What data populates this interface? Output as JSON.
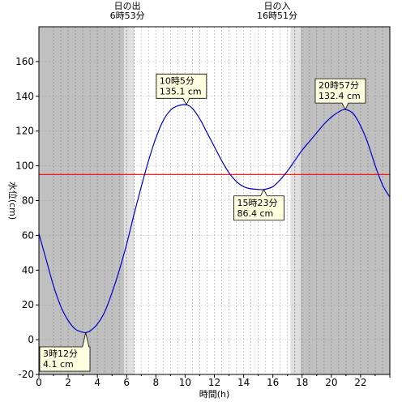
{
  "chart_data": {
    "type": "line",
    "title": "",
    "xlabel": "時間(h)",
    "ylabel": "水位(cm)",
    "xlim": [
      0,
      24
    ],
    "ylim": [
      -20,
      180
    ],
    "x_ticks": [
      0,
      2,
      4,
      6,
      8,
      10,
      12,
      14,
      16,
      18,
      20,
      22
    ],
    "y_ticks": [
      -20,
      0,
      20,
      40,
      60,
      80,
      100,
      120,
      140,
      160
    ],
    "grid": true,
    "sunrise": {
      "label": "日の出",
      "time": "6時53分",
      "hour": 6.883
    },
    "sunset": {
      "label": "日の入",
      "time": "16時51分",
      "hour": 16.85
    },
    "reference_line": {
      "y": 95,
      "color": "#ff0000"
    },
    "series": [
      {
        "color": "#0000cc",
        "x": [
          0,
          0.5,
          1,
          1.5,
          2,
          2.5,
          3,
          3.2,
          3.5,
          4,
          4.5,
          5,
          5.5,
          6,
          6.5,
          7,
          7.5,
          8,
          8.5,
          9,
          9.5,
          10.08,
          10.5,
          11,
          11.5,
          12,
          12.5,
          13,
          13.5,
          14,
          14.5,
          15,
          15.38,
          16,
          16.5,
          17,
          17.5,
          18,
          18.5,
          19,
          19.5,
          20,
          20.5,
          20.95,
          21.5,
          22,
          22.5,
          23,
          23.5,
          24
        ],
        "y": [
          61,
          46,
          31,
          19,
          11,
          6,
          4.3,
          4.1,
          5,
          9,
          16,
          27,
          40,
          55,
          72,
          88,
          103,
          116,
          126,
          132,
          134.5,
          135.1,
          133,
          127,
          119,
          111,
          103,
          96,
          91,
          88,
          86.8,
          86.5,
          86.4,
          88,
          92,
          97,
          103,
          109,
          114,
          119,
          124,
          128,
          131,
          132.4,
          130,
          123,
          113,
          100,
          89,
          82
        ]
      }
    ],
    "annotations": [
      {
        "time": "10時5分",
        "value": "135.1 cm",
        "x": 10.08,
        "y": 135.1,
        "kind": "high"
      },
      {
        "time": "15時23分",
        "value": "86.4 cm",
        "x": 15.38,
        "y": 86.4,
        "kind": "low"
      },
      {
        "time": "20時57分",
        "value": "132.4 cm",
        "x": 20.95,
        "y": 132.4,
        "kind": "high"
      },
      {
        "time": "3時12分",
        "value": "4.1 cm",
        "x": 3.2,
        "y": 4.1,
        "kind": "low"
      }
    ],
    "colors": {
      "night": "#c0c0c0",
      "twilight": "#e0e0e0",
      "day": "#ffffff",
      "callout_fill": "#ffffe0",
      "grid_night": "#999999",
      "grid_day": "#c8c8c8"
    }
  }
}
